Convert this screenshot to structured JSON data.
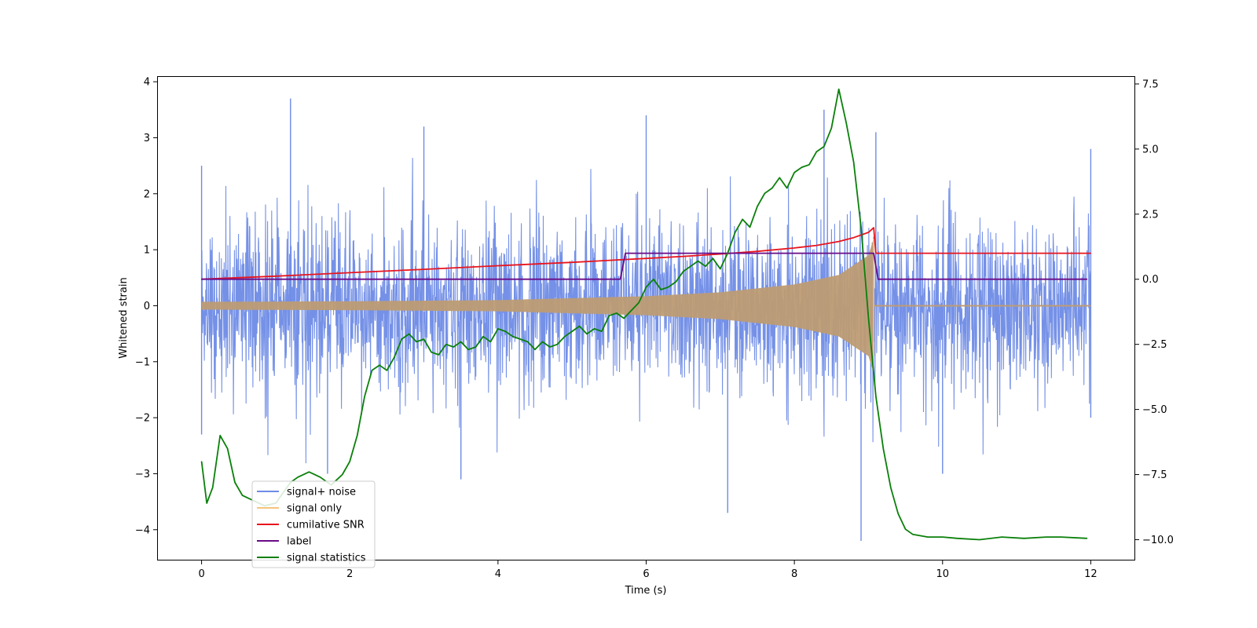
{
  "chart_data": {
    "type": "line",
    "title": "",
    "xlabel": "Time (s)",
    "ylabel": "Whitened strain",
    "xlim": [
      -0.6,
      12.6
    ],
    "ylim": [
      -4.55,
      4.1
    ],
    "y2lim": [
      -10.8,
      7.8
    ],
    "x_ticks": [
      0,
      2,
      4,
      6,
      8,
      10,
      12
    ],
    "y_ticks": [
      -4,
      -3,
      -2,
      -1,
      0,
      1,
      2,
      3,
      4
    ],
    "y2_ticks": [
      -10.0,
      -7.5,
      -5.0,
      -2.5,
      0.0,
      2.5,
      5.0,
      7.5
    ],
    "x_tick_labels": [
      "0",
      "2",
      "4",
      "6",
      "8",
      "10",
      "12"
    ],
    "y_tick_labels": [
      "−4",
      "−3",
      "−2",
      "−1",
      "0",
      "1",
      "2",
      "3",
      "4"
    ],
    "y2_tick_labels": [
      "−10.0",
      "−7.5",
      "−5.0",
      "−2.5",
      "0.0",
      "2.5",
      "5.0",
      "7.5"
    ],
    "grid": false,
    "legend_position": "lower-left",
    "series": [
      {
        "name": "signal+ noise",
        "color": "#6e8be6",
        "axis": "left",
        "kind": "noisy",
        "x_range": [
          0,
          12
        ],
        "envelope_upper": [
          [
            0,
            2.5
          ],
          [
            1.2,
            3.7
          ],
          [
            3,
            3.2
          ],
          [
            6,
            3.4
          ],
          [
            8.4,
            3.5
          ],
          [
            9.1,
            3.1
          ],
          [
            12,
            2.8
          ]
        ],
        "envelope_lower": [
          [
            0,
            -2.3
          ],
          [
            1.7,
            -3.0
          ],
          [
            3.5,
            -3.1
          ],
          [
            7.1,
            -3.7
          ],
          [
            8.9,
            -4.2
          ],
          [
            10,
            -3.0
          ],
          [
            12,
            -2.0
          ]
        ]
      },
      {
        "name": "signal only",
        "color": "#f5c47e",
        "fill_color": "#bd9c74",
        "axis": "left",
        "kind": "chirp",
        "x_range": [
          0,
          12
        ],
        "merger_time": 9.07,
        "pre_merger_amplitude": [
          [
            0,
            0.07
          ],
          [
            2,
            0.08
          ],
          [
            4,
            0.1
          ],
          [
            6,
            0.17
          ],
          [
            7,
            0.24
          ],
          [
            8,
            0.38
          ],
          [
            8.6,
            0.55
          ],
          [
            9.0,
            0.9
          ],
          [
            9.07,
            1.2
          ]
        ]
      },
      {
        "name": "cumilative SNR",
        "color": "#e8141d",
        "axis": "right",
        "x": [
          0,
          1,
          2,
          3,
          4,
          5,
          6,
          6.5,
          7,
          7.5,
          8,
          8.3,
          8.6,
          8.8,
          9.0,
          9.07,
          9.1,
          12
        ],
        "values": [
          0.0,
          0.12,
          0.25,
          0.38,
          0.52,
          0.65,
          0.8,
          0.88,
          0.97,
          1.07,
          1.2,
          1.3,
          1.45,
          1.6,
          1.8,
          1.98,
          1.0,
          1.0
        ]
      },
      {
        "name": "label",
        "color": "#6a0b87",
        "axis": "right",
        "x": [
          0,
          5.65,
          5.72,
          9.07,
          9.13,
          11.95
        ],
        "values": [
          0,
          0,
          1,
          1,
          0,
          0
        ]
      },
      {
        "name": "signal statistics",
        "color": "#0a800a",
        "axis": "right",
        "x": [
          0,
          0.07,
          0.15,
          0.25,
          0.35,
          0.45,
          0.55,
          0.7,
          0.85,
          1.0,
          1.1,
          1.2,
          1.3,
          1.45,
          1.6,
          1.75,
          1.9,
          2.0,
          2.1,
          2.2,
          2.3,
          2.4,
          2.5,
          2.6,
          2.7,
          2.8,
          2.9,
          3.0,
          3.1,
          3.2,
          3.3,
          3.4,
          3.5,
          3.6,
          3.7,
          3.8,
          3.9,
          4.0,
          4.1,
          4.2,
          4.3,
          4.4,
          4.5,
          4.6,
          4.7,
          4.8,
          4.9,
          5.0,
          5.1,
          5.2,
          5.3,
          5.4,
          5.5,
          5.6,
          5.7,
          5.8,
          5.9,
          6.0,
          6.1,
          6.2,
          6.3,
          6.4,
          6.5,
          6.6,
          6.7,
          6.8,
          6.9,
          7.0,
          7.1,
          7.2,
          7.3,
          7.4,
          7.5,
          7.6,
          7.7,
          7.8,
          7.9,
          8.0,
          8.1,
          8.2,
          8.3,
          8.4,
          8.5,
          8.6,
          8.7,
          8.8,
          8.9,
          9.0,
          9.1,
          9.2,
          9.3,
          9.4,
          9.5,
          9.6,
          9.8,
          10.0,
          10.2,
          10.5,
          10.8,
          11.1,
          11.4,
          11.6,
          11.95
        ],
        "values": [
          -7.0,
          -8.6,
          -8.0,
          -6.0,
          -6.5,
          -7.8,
          -8.3,
          -8.5,
          -8.7,
          -8.6,
          -8.2,
          -7.8,
          -7.6,
          -7.4,
          -7.6,
          -7.9,
          -7.5,
          -7.0,
          -6.0,
          -4.5,
          -3.5,
          -3.3,
          -3.5,
          -3.0,
          -2.3,
          -2.1,
          -2.4,
          -2.3,
          -2.8,
          -2.9,
          -2.5,
          -2.6,
          -2.4,
          -2.7,
          -2.6,
          -2.2,
          -2.4,
          -1.9,
          -2.0,
          -2.2,
          -2.3,
          -2.4,
          -2.7,
          -2.4,
          -2.6,
          -2.5,
          -2.2,
          -2.0,
          -1.8,
          -2.1,
          -1.9,
          -2.0,
          -1.4,
          -1.3,
          -1.5,
          -1.2,
          -0.9,
          -0.3,
          0.0,
          -0.4,
          -0.3,
          -0.1,
          0.3,
          0.5,
          0.7,
          0.5,
          0.8,
          0.4,
          1.0,
          1.8,
          2.3,
          2.0,
          2.8,
          3.3,
          3.5,
          3.9,
          3.5,
          4.1,
          4.3,
          4.4,
          4.9,
          5.1,
          5.8,
          7.3,
          6.0,
          4.5,
          2.0,
          -1.5,
          -4.5,
          -6.5,
          -8.0,
          -9.0,
          -9.6,
          -9.8,
          -9.9,
          -9.9,
          -9.95,
          -10.0,
          -9.9,
          -9.95,
          -9.9,
          -9.9,
          -9.95
        ]
      }
    ]
  }
}
